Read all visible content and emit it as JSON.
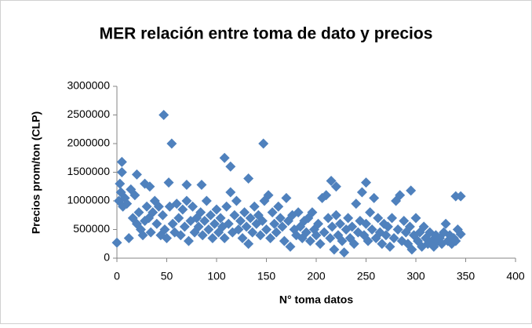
{
  "chart_data": {
    "type": "scatter",
    "title": "MER relación entre toma de dato y precios",
    "x_label": "N° toma datos",
    "y_label": "Precios prom/ton (CLP)",
    "color": "#4f81bd",
    "xlim": [
      0,
      400
    ],
    "xticks": [
      0,
      50,
      100,
      150,
      200,
      250,
      300,
      350,
      400
    ],
    "ylim": [
      0,
      3000000
    ],
    "yticks": [
      0,
      500000,
      1000000,
      1500000,
      2000000,
      2500000,
      3000000
    ],
    "x": [
      0,
      2,
      4,
      6,
      8,
      10,
      12,
      14,
      16,
      18,
      20,
      22,
      24,
      26,
      28,
      30,
      32,
      34,
      36,
      38,
      40,
      42,
      44,
      46,
      48,
      50,
      53,
      56,
      58,
      60,
      62,
      64,
      66,
      68,
      70,
      72,
      74,
      76,
      78,
      80,
      82,
      84,
      86,
      88,
      90,
      92,
      94,
      96,
      98,
      100,
      102,
      104,
      106,
      108,
      110,
      112,
      114,
      116,
      118,
      120,
      122,
      124,
      126,
      128,
      130,
      132,
      134,
      136,
      138,
      140,
      142,
      144,
      146,
      148,
      150,
      152,
      154,
      156,
      158,
      160,
      162,
      164,
      166,
      168,
      170,
      172,
      174,
      176,
      178,
      180,
      182,
      184,
      186,
      188,
      190,
      192,
      194,
      196,
      198,
      200,
      202,
      204,
      206,
      208,
      210,
      212,
      214,
      216,
      218,
      220,
      222,
      224,
      226,
      228,
      230,
      232,
      234,
      236,
      238,
      240,
      242,
      244,
      246,
      248,
      250,
      252,
      254,
      256,
      258,
      260,
      262,
      264,
      266,
      268,
      270,
      272,
      274,
      276,
      278,
      280,
      282,
      284,
      286,
      288,
      290,
      292,
      294,
      296,
      298,
      300,
      302,
      304,
      306,
      308,
      310,
      312,
      314,
      316,
      318,
      320,
      322,
      324,
      326,
      328,
      330,
      332,
      334,
      336,
      338,
      340,
      342,
      5,
      47,
      55,
      147,
      108,
      114,
      5,
      20,
      3,
      28,
      33,
      52,
      70,
      85,
      132,
      215,
      220,
      250,
      295,
      340,
      345,
      345
    ],
    "values": [
      270000,
      1000000,
      1150000,
      900000,
      1050000,
      950000,
      350000,
      1200000,
      700000,
      1100000,
      600000,
      800000,
      500000,
      400000,
      650000,
      900000,
      700000,
      450000,
      800000,
      1000000,
      600000,
      900000,
      400000,
      750000,
      500000,
      350000,
      900000,
      600000,
      450000,
      950000,
      700000,
      400000,
      850000,
      550000,
      1000000,
      300000,
      650000,
      900000,
      450000,
      700000,
      550000,
      800000,
      400000,
      650000,
      1000000,
      500000,
      750000,
      350000,
      600000,
      850000,
      450000,
      700000,
      550000,
      350000,
      900000,
      600000,
      1150000,
      450000,
      750000,
      1000000,
      500000,
      650000,
      350000,
      800000,
      550000,
      250000,
      700000,
      450000,
      900000,
      600000,
      750000,
      400000,
      650000,
      1000000,
      500000,
      1100000,
      350000,
      800000,
      600000,
      450000,
      900000,
      700000,
      550000,
      300000,
      1050000,
      650000,
      200000,
      750000,
      500000,
      400000,
      800000,
      550000,
      350000,
      650000,
      450000,
      700000,
      300000,
      800000,
      500000,
      400000,
      600000,
      250000,
      1050000,
      450000,
      1100000,
      700000,
      350000,
      550000,
      150000,
      750000,
      400000,
      600000,
      300000,
      100000,
      500000,
      700000,
      350000,
      550000,
      250000,
      950000,
      450000,
      650000,
      1150000,
      400000,
      600000,
      300000,
      800000,
      500000,
      1050000,
      350000,
      700000,
      450000,
      250000,
      600000,
      400000,
      550000,
      200000,
      700000,
      350000,
      1000000,
      500000,
      1100000,
      300000,
      650000,
      450000,
      250000,
      550000,
      150000,
      400000,
      700000,
      300000,
      450000,
      200000,
      550000,
      350000,
      250000,
      450000,
      300000,
      200000,
      400000,
      300000,
      350000,
      250000,
      450000,
      600000,
      300000,
      400000,
      250000,
      350000,
      300000,
      500000,
      1680000,
      2500000,
      2000000,
      2000000,
      1750000,
      1600000,
      1500000,
      1460000,
      1300000,
      1300000,
      1250000,
      1320000,
      1280000,
      1280000,
      1390000,
      1350000,
      1250000,
      1320000,
      1180000,
      1080000,
      1080000,
      420000
    ]
  }
}
